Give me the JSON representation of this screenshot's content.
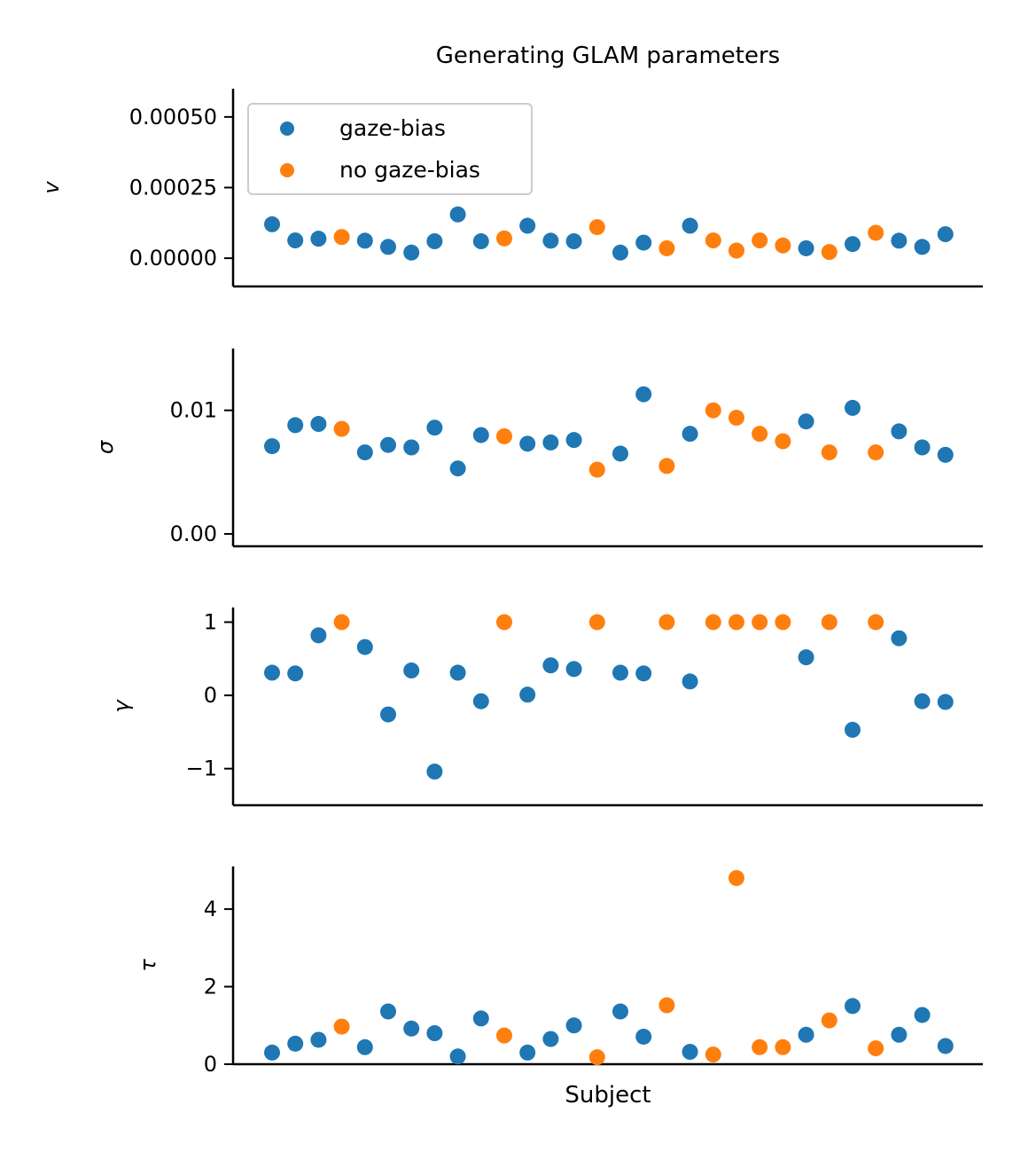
{
  "chart_data": {
    "type": "scatter",
    "title": "Generating GLAM parameters",
    "xlabel": "Subject",
    "legend": {
      "placement": "top-left",
      "entries": [
        {
          "label": "gaze-bias",
          "color": "#1f77b4"
        },
        {
          "label": "no gaze-bias",
          "color": "#ff7f0e"
        }
      ]
    },
    "group": [
      "gaze-bias",
      "gaze-bias",
      "gaze-bias",
      "no gaze-bias",
      "gaze-bias",
      "gaze-bias",
      "gaze-bias",
      "gaze-bias",
      "gaze-bias",
      "gaze-bias",
      "no gaze-bias",
      "gaze-bias",
      "gaze-bias",
      "gaze-bias",
      "no gaze-bias",
      "gaze-bias",
      "gaze-bias",
      "no gaze-bias",
      "gaze-bias",
      "no gaze-bias",
      "no gaze-bias",
      "no gaze-bias",
      "no gaze-bias",
      "gaze-bias",
      "no gaze-bias",
      "gaze-bias",
      "no gaze-bias",
      "gaze-bias",
      "gaze-bias",
      "gaze-bias"
    ],
    "panels": [
      {
        "ylabel": "v",
        "ylim": [
          -0.0001,
          0.0006
        ],
        "yticks": [
          0,
          0.00025,
          0.0005
        ],
        "ytick_labels": [
          "0.00000",
          "0.00025",
          "0.00050"
        ],
        "values": [
          0.00012,
          6.3e-05,
          6.9e-05,
          7.5e-05,
          6.2e-05,
          4e-05,
          2e-05,
          6e-05,
          0.000155,
          6e-05,
          7e-05,
          0.000115,
          6.2e-05,
          6e-05,
          0.00011,
          2e-05,
          5.5e-05,
          3.5e-05,
          0.000115,
          6.3e-05,
          2.7e-05,
          6.3e-05,
          4.5e-05,
          3.5e-05,
          2.2e-05,
          5e-05,
          9e-05,
          6.2e-05,
          4e-05,
          8.5e-05
        ]
      },
      {
        "ylabel": "σ",
        "ylim": [
          -0.001,
          0.015
        ],
        "yticks": [
          0,
          0.01
        ],
        "ytick_labels": [
          "0.00",
          "0.01"
        ],
        "values": [
          0.0071,
          0.0088,
          0.0089,
          0.0085,
          0.0066,
          0.0072,
          0.007,
          0.0086,
          0.0053,
          0.008,
          0.0079,
          0.0073,
          0.0074,
          0.0076,
          0.0052,
          0.0065,
          0.0113,
          0.0055,
          0.0081,
          0.01,
          0.0094,
          0.0081,
          0.0075,
          0.0091,
          0.0066,
          0.0102,
          0.0066,
          0.0083,
          0.007,
          0.0064
        ]
      },
      {
        "ylabel": "γ",
        "ylim": [
          -1.5,
          1.2
        ],
        "yticks": [
          -1,
          0,
          1
        ],
        "ytick_labels": [
          "−1",
          "0",
          "1"
        ],
        "values": [
          0.31,
          0.3,
          0.82,
          1.0,
          0.66,
          -0.26,
          0.34,
          -1.04,
          0.31,
          -0.08,
          1.0,
          0.01,
          0.41,
          0.36,
          1.0,
          0.31,
          0.3,
          1.0,
          0.19,
          1.0,
          1.0,
          1.0,
          1.0,
          0.52,
          1.0,
          -0.47,
          1.0,
          0.78,
          -0.08,
          -0.09
        ]
      },
      {
        "ylabel": "τ",
        "ylim": [
          0,
          5.1
        ],
        "yticks": [
          0,
          2,
          4
        ],
        "ytick_labels": [
          "0",
          "2",
          "4"
        ],
        "values": [
          0.3,
          0.53,
          0.63,
          0.97,
          0.44,
          1.36,
          0.92,
          0.8,
          0.2,
          1.18,
          0.74,
          0.3,
          0.65,
          1.0,
          0.18,
          1.36,
          0.71,
          1.52,
          0.32,
          0.25,
          4.8,
          0.44,
          0.44,
          0.76,
          1.13,
          1.5,
          0.41,
          0.76,
          1.27,
          0.47
        ]
      }
    ]
  }
}
